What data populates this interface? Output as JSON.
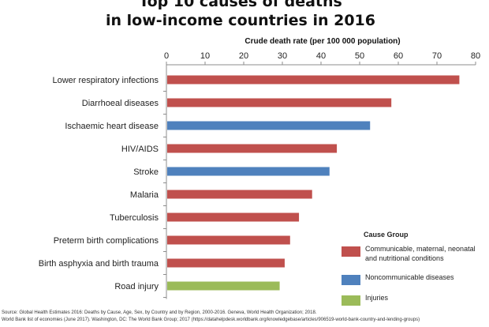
{
  "chart_data": {
    "type": "bar",
    "orientation": "horizontal",
    "title_lines": [
      "Top 10 causes of deaths",
      "in low-income countries in 2016"
    ],
    "xlabel": "Crude death rate (per 100 000 population)",
    "xlim": [
      0,
      80
    ],
    "xticks": [
      "0",
      "10",
      "20",
      "30",
      "40",
      "50",
      "60",
      "70",
      "80"
    ],
    "x_axis_position": "top",
    "grid": false,
    "categories": [
      "Lower respiratory infections",
      "Diarrhoeal diseases",
      "Ischaemic heart disease",
      "HIV/AIDS",
      "Stroke",
      "Malaria",
      "Tuberculosis",
      "Preterm birth complications",
      "Birth asphyxia and birth trauma",
      "Road injury"
    ],
    "values": [
      75.8,
      58.2,
      52.7,
      44.1,
      42.2,
      37.7,
      34.3,
      32.0,
      30.6,
      29.3
    ],
    "groups": [
      "Communicable, maternal, neonatal and nutritional conditions",
      "Communicable, maternal, neonatal and nutritional conditions",
      "Noncommunicable diseases",
      "Communicable, maternal, neonatal and nutritional conditions",
      "Noncommunicable diseases",
      "Communicable, maternal, neonatal and nutritional conditions",
      "Communicable, maternal, neonatal and nutritional conditions",
      "Communicable, maternal, neonatal and nutritional conditions",
      "Communicable, maternal, neonatal and nutritional conditions",
      "Injuries"
    ],
    "legend": {
      "title": "Cause Group",
      "placement": "bottom-right",
      "entries": [
        {
          "label_lines": [
            "Communicable, maternal, neonatal",
            "and nutritional conditions"
          ],
          "color": "#c0504d"
        },
        {
          "label_lines": [
            "Noncommunicable diseases"
          ],
          "color": "#4f81bd"
        },
        {
          "label_lines": [
            "Injuries"
          ],
          "color": "#9bbb59"
        }
      ]
    },
    "source_lines": [
      "Source: Global Health Estimates 2016: Deaths by Cause, Age, Sex, by Country and by Region, 2000-2016. Geneva, World Health Organization; 2018.",
      "World Bank list of economies (June 2017). Washington, DC: The World Bank Group; 2017 (https://datahelpdesk.worldbank.org/knowledgebase/articles/906519-world-bank-country-and-lending-groups)"
    ]
  },
  "colors": {
    "communicable": "#c0504d",
    "noncommunicable": "#4f81bd",
    "injuries": "#9bbb59"
  }
}
